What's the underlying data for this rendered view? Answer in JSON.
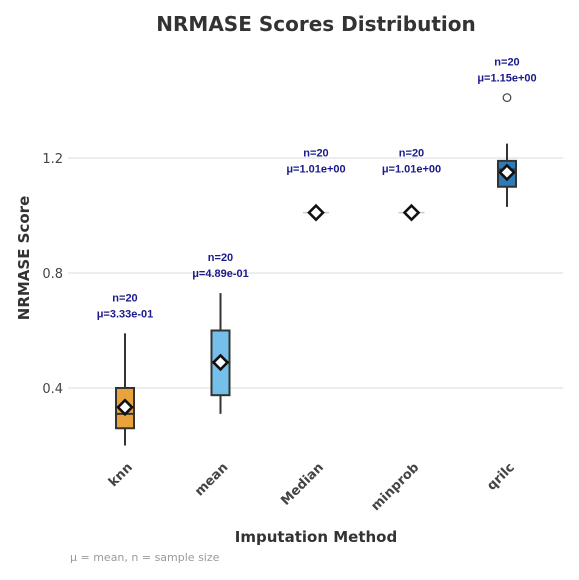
{
  "chart_data": {
    "type": "box",
    "title": "NRMASE Scores Distribution",
    "xlabel": "Imputation Method",
    "ylabel": "NRMASE Score",
    "ylim": [
      0.18,
      1.45
    ],
    "yticks": [
      0.4,
      0.8,
      1.2
    ],
    "ytick_labels": [
      "0.4",
      "0.8",
      "1.2"
    ],
    "grid": "horizontal",
    "categories": [
      "knn",
      "mean",
      "Median",
      "minprob",
      "qrilc"
    ],
    "boxes": [
      {
        "category": "knn",
        "whisker_low": 0.2,
        "q1": 0.26,
        "median": 0.31,
        "q3": 0.4,
        "whisker_high": 0.59,
        "mean": 0.333,
        "outliers": [],
        "n_label": "n=20",
        "mean_label": "μ=3.33e-01",
        "color": "#e8a33d"
      },
      {
        "category": "mean",
        "whisker_low": 0.31,
        "q1": 0.375,
        "median": 0.49,
        "q3": 0.6,
        "whisker_high": 0.73,
        "mean": 0.489,
        "outliers": [],
        "n_label": "n=20",
        "mean_label": "μ=4.89e-01",
        "color": "#74c0ea"
      },
      {
        "category": "Median",
        "whisker_low": 1.01,
        "q1": 1.01,
        "median": 1.01,
        "q3": 1.01,
        "whisker_high": 1.01,
        "mean": 1.01,
        "outliers": [],
        "n_label": "n=20",
        "mean_label": "μ=1.01e+00",
        "color": "#7fb3e0"
      },
      {
        "category": "minprob",
        "whisker_low": 1.01,
        "q1": 1.01,
        "median": 1.01,
        "q3": 1.01,
        "whisker_high": 1.01,
        "mean": 1.01,
        "outliers": [],
        "n_label": "n=20",
        "mean_label": "μ=1.01e+00",
        "color": "#7fb3e0"
      },
      {
        "category": "qrilc",
        "whisker_low": 1.03,
        "q1": 1.1,
        "median": 1.16,
        "q3": 1.19,
        "whisker_high": 1.25,
        "mean": 1.15,
        "outliers": [
          1.41
        ],
        "n_label": "n=20",
        "mean_label": "μ=1.15e+00",
        "color": "#2e7bb6"
      }
    ],
    "footnote": "μ = mean, n = sample size"
  }
}
